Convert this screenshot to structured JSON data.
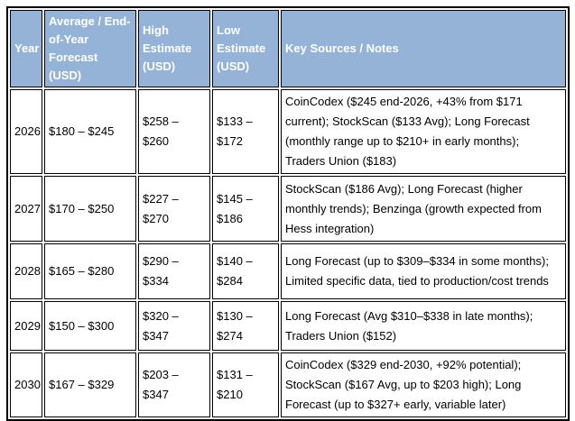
{
  "table": {
    "columns": [
      {
        "label": "Year"
      },
      {
        "label": "Average / End-of-Year Forecast (USD)"
      },
      {
        "label": "High Estimate (USD)"
      },
      {
        "label": "Low Estimate (USD)"
      },
      {
        "label": "Key Sources / Notes"
      }
    ],
    "rows": [
      {
        "year": "2026",
        "avg": "$180 – $245",
        "high": "$258 – $260",
        "low": "$133 – $172",
        "notes": "CoinCodex ($245 end-2026, +43% from $171 current); StockScan ($133 Avg); Long Forecast (monthly range up to $210+ in early months); Traders Union ($183)"
      },
      {
        "year": "2027",
        "avg": "$170 – $250",
        "high": "$227 – $270",
        "low": "$145 – $186",
        "notes": "StockScan ($186 Avg); Long Forecast (higher monthly trends); Benzinga (growth expected from Hess integration)"
      },
      {
        "year": "2028",
        "avg": "$165 – $280",
        "high": "$290 – $334",
        "low": "$140 – $284",
        "notes": "Long Forecast (up to $309–$334 in some months); Limited specific data, tied to production/cost trends"
      },
      {
        "year": "2029",
        "avg": "$150 – $300",
        "high": "$320 – $347",
        "low": "$130 – $274",
        "notes": "Long Forecast (Avg $310–$338 in late months); Traders Union ($152)"
      },
      {
        "year": "2030",
        "avg": "$167 – $329",
        "high": "$203 – $347",
        "low": "$131 – $210",
        "notes": "CoinCodex ($329 end-2030, +92% potential); StockScan ($167 Avg, up to $203 high); Long Forecast (up to $327+ early, variable later)"
      }
    ]
  },
  "colors": {
    "header_bg": "#95B3D7",
    "header_text": "#FFFFFF",
    "body_text": "#000000",
    "border": "#000000"
  }
}
